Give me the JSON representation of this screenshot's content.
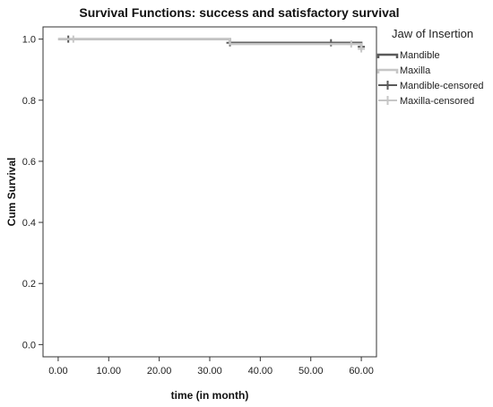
{
  "chart_data": {
    "type": "line",
    "title": "Survival Functions: success and satisfactory survival",
    "xlabel": "time (in month)",
    "ylabel": "Cum Survival",
    "xlim": [
      -3,
      63
    ],
    "ylim": [
      -0.04,
      1.04
    ],
    "x_ticks": [
      "0.00",
      "10.00",
      "20.00",
      "30.00",
      "40.00",
      "50.00",
      "60.00"
    ],
    "y_ticks": [
      "0.0",
      "0.2",
      "0.4",
      "0.6",
      "0.8",
      "1.0"
    ],
    "grid": false,
    "legend": {
      "title": "Jaw of Insertion",
      "placement": "right",
      "entries": [
        {
          "label": "Mandible",
          "color": "#5a5a5a",
          "kind": "step"
        },
        {
          "label": "Maxilla",
          "color": "#c6c6c6",
          "kind": "step"
        },
        {
          "label": "Mandible-censored",
          "color": "#5a5a5a",
          "kind": "cross"
        },
        {
          "label": "Maxilla-censored",
          "color": "#c6c6c6",
          "kind": "cross"
        }
      ]
    },
    "series": [
      {
        "name": "Mandible",
        "color": "#5a5a5a",
        "steps": [
          [
            0,
            1.0
          ],
          [
            34,
            1.0
          ],
          [
            34,
            0.988
          ],
          [
            60,
            0.988
          ],
          [
            60,
            0.975
          ]
        ],
        "censored": [
          [
            2,
            1.0
          ],
          [
            34,
            0.988
          ],
          [
            54,
            0.988
          ],
          [
            60,
            0.975
          ]
        ]
      },
      {
        "name": "Maxilla",
        "color": "#c6c6c6",
        "steps": [
          [
            0,
            1.0
          ],
          [
            34,
            1.0
          ],
          [
            34,
            0.984
          ],
          [
            60,
            0.984
          ],
          [
            60,
            0.968
          ]
        ],
        "censored": [
          [
            3,
            1.0
          ],
          [
            58,
            0.984
          ],
          [
            60,
            0.968
          ]
        ]
      }
    ]
  }
}
